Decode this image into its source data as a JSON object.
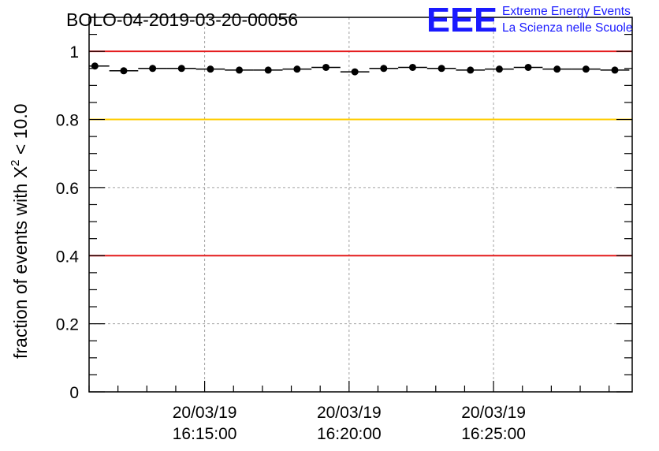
{
  "chart_data": {
    "type": "scatter",
    "title": "BOLO-04-2019-03-20-00056",
    "xlabel": "",
    "ylabel_parts": {
      "prefix": "fraction of events with ",
      "symbol": "X",
      "superscript": "2",
      "suffix": " < 10.0"
    },
    "x_unit": "minutes since 16:11:00",
    "xlim": [
      0,
      18.8
    ],
    "ylim": [
      0,
      1.1
    ],
    "grid": true,
    "y_ticks": [
      {
        "value": 0,
        "label": "0"
      },
      {
        "value": 0.2,
        "label": "0.2"
      },
      {
        "value": 0.4,
        "label": "0.4"
      },
      {
        "value": 0.6,
        "label": "0.6"
      },
      {
        "value": 0.8,
        "label": "0.8"
      },
      {
        "value": 1.0,
        "label": "1"
      }
    ],
    "x_ticks": [
      {
        "value": 4,
        "date": "20/03/19",
        "time": "16:15:00"
      },
      {
        "value": 9,
        "date": "20/03/19",
        "time": "16:20:00"
      },
      {
        "value": 14,
        "date": "20/03/19",
        "time": "16:25:00"
      }
    ],
    "reference_lines": [
      {
        "value": 1.0,
        "color": "#e41a1c"
      },
      {
        "value": 0.8,
        "color": "#ffcc00"
      },
      {
        "value": 0.4,
        "color": "#e41a1c"
      }
    ],
    "bin_width": 1.0,
    "x": [
      0.2,
      1.2,
      2.2,
      3.2,
      4.2,
      5.2,
      6.2,
      7.2,
      8.2,
      9.2,
      10.2,
      11.2,
      12.2,
      13.2,
      14.2,
      15.2,
      16.2,
      17.2,
      18.2
    ],
    "values": [
      0.957,
      0.943,
      0.95,
      0.95,
      0.948,
      0.945,
      0.945,
      0.948,
      0.953,
      0.94,
      0.95,
      0.953,
      0.95,
      0.945,
      0.948,
      0.953,
      0.948,
      0.948,
      0.945
    ]
  },
  "logo": {
    "letters": "EEE",
    "line1": "Extreme Energy Events",
    "line2": "La Scienza nelle Scuole",
    "color": "#1a1aff"
  }
}
